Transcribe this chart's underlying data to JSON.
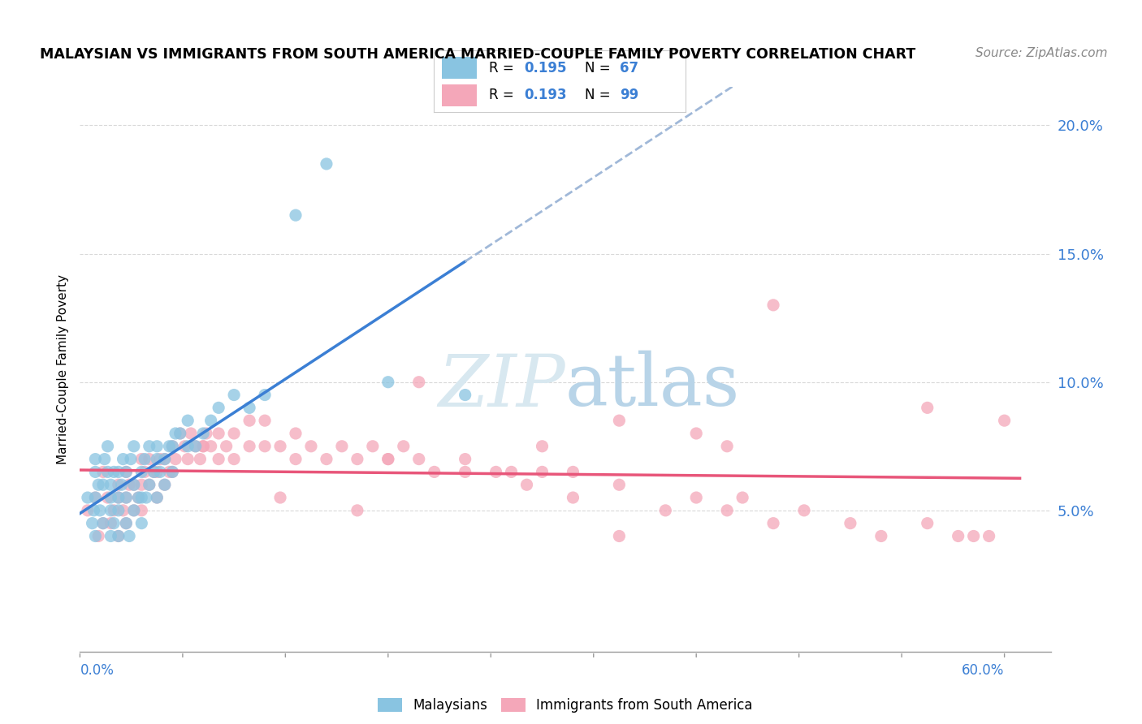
{
  "title": "MALAYSIAN VS IMMIGRANTS FROM SOUTH AMERICA MARRIED-COUPLE FAMILY POVERTY CORRELATION CHART",
  "source": "Source: ZipAtlas.com",
  "ylabel": "Married-Couple Family Poverty",
  "xlim": [
    0.0,
    0.63
  ],
  "ylim": [
    -0.005,
    0.215
  ],
  "color_blue": "#89c4e1",
  "color_pink": "#f4a7b9",
  "color_blue_line": "#3b7fd4",
  "color_pink_line": "#e8567a",
  "color_dashed": "#a0b8d8",
  "color_text_blue": "#3b7fd4",
  "background_color": "#ffffff",
  "grid_color": "#d0d0d0",
  "watermark_color": "#d8e8f0",
  "legend_label1": "R = 0.195   N = 67",
  "legend_label2": "R = 0.193   N = 99",
  "malaysians_x": [
    0.005,
    0.008,
    0.009,
    0.01,
    0.01,
    0.01,
    0.01,
    0.012,
    0.013,
    0.015,
    0.015,
    0.016,
    0.018,
    0.018,
    0.02,
    0.02,
    0.02,
    0.02,
    0.022,
    0.022,
    0.025,
    0.025,
    0.025,
    0.025,
    0.027,
    0.028,
    0.03,
    0.03,
    0.03,
    0.032,
    0.033,
    0.035,
    0.035,
    0.035,
    0.038,
    0.04,
    0.04,
    0.04,
    0.042,
    0.043,
    0.045,
    0.045,
    0.048,
    0.05,
    0.05,
    0.05,
    0.052,
    0.055,
    0.055,
    0.058,
    0.06,
    0.06,
    0.062,
    0.065,
    0.07,
    0.07,
    0.075,
    0.08,
    0.085,
    0.09,
    0.1,
    0.11,
    0.12,
    0.14,
    0.16,
    0.2,
    0.25
  ],
  "malaysians_y": [
    0.055,
    0.045,
    0.05,
    0.04,
    0.055,
    0.065,
    0.07,
    0.06,
    0.05,
    0.045,
    0.06,
    0.07,
    0.065,
    0.075,
    0.04,
    0.05,
    0.055,
    0.06,
    0.045,
    0.065,
    0.04,
    0.05,
    0.055,
    0.065,
    0.06,
    0.07,
    0.045,
    0.055,
    0.065,
    0.04,
    0.07,
    0.05,
    0.06,
    0.075,
    0.055,
    0.045,
    0.055,
    0.065,
    0.07,
    0.055,
    0.06,
    0.075,
    0.065,
    0.055,
    0.07,
    0.075,
    0.065,
    0.06,
    0.07,
    0.075,
    0.065,
    0.075,
    0.08,
    0.08,
    0.075,
    0.085,
    0.075,
    0.08,
    0.085,
    0.09,
    0.095,
    0.09,
    0.095,
    0.165,
    0.185,
    0.1,
    0.095
  ],
  "sa_x": [
    0.005,
    0.01,
    0.012,
    0.015,
    0.015,
    0.018,
    0.02,
    0.022,
    0.025,
    0.025,
    0.025,
    0.028,
    0.03,
    0.03,
    0.03,
    0.032,
    0.035,
    0.035,
    0.038,
    0.04,
    0.04,
    0.04,
    0.042,
    0.045,
    0.045,
    0.048,
    0.05,
    0.05,
    0.052,
    0.055,
    0.055,
    0.058,
    0.06,
    0.06,
    0.062,
    0.065,
    0.068,
    0.07,
    0.072,
    0.075,
    0.078,
    0.08,
    0.082,
    0.085,
    0.09,
    0.09,
    0.095,
    0.1,
    0.1,
    0.11,
    0.11,
    0.12,
    0.12,
    0.13,
    0.14,
    0.14,
    0.15,
    0.16,
    0.17,
    0.18,
    0.19,
    0.2,
    0.21,
    0.22,
    0.23,
    0.25,
    0.27,
    0.29,
    0.3,
    0.32,
    0.35,
    0.35,
    0.38,
    0.4,
    0.42,
    0.43,
    0.45,
    0.47,
    0.5,
    0.52,
    0.55,
    0.55,
    0.57,
    0.58,
    0.59,
    0.6,
    0.3,
    0.4,
    0.45,
    0.2,
    0.25,
    0.35,
    0.22,
    0.28,
    0.32,
    0.18,
    0.13,
    0.08,
    0.42
  ],
  "sa_y": [
    0.05,
    0.055,
    0.04,
    0.045,
    0.065,
    0.055,
    0.045,
    0.05,
    0.04,
    0.055,
    0.06,
    0.05,
    0.045,
    0.055,
    0.065,
    0.06,
    0.05,
    0.06,
    0.055,
    0.05,
    0.06,
    0.07,
    0.065,
    0.06,
    0.07,
    0.065,
    0.055,
    0.065,
    0.07,
    0.06,
    0.07,
    0.065,
    0.065,
    0.075,
    0.07,
    0.08,
    0.075,
    0.07,
    0.08,
    0.075,
    0.07,
    0.075,
    0.08,
    0.075,
    0.07,
    0.08,
    0.075,
    0.07,
    0.08,
    0.075,
    0.085,
    0.075,
    0.085,
    0.075,
    0.07,
    0.08,
    0.075,
    0.07,
    0.075,
    0.07,
    0.075,
    0.07,
    0.075,
    0.07,
    0.065,
    0.07,
    0.065,
    0.06,
    0.065,
    0.055,
    0.06,
    0.04,
    0.05,
    0.055,
    0.05,
    0.055,
    0.045,
    0.05,
    0.045,
    0.04,
    0.045,
    0.09,
    0.04,
    0.04,
    0.04,
    0.085,
    0.075,
    0.08,
    0.13,
    0.07,
    0.065,
    0.085,
    0.1,
    0.065,
    0.065,
    0.05,
    0.055,
    0.075,
    0.075
  ]
}
